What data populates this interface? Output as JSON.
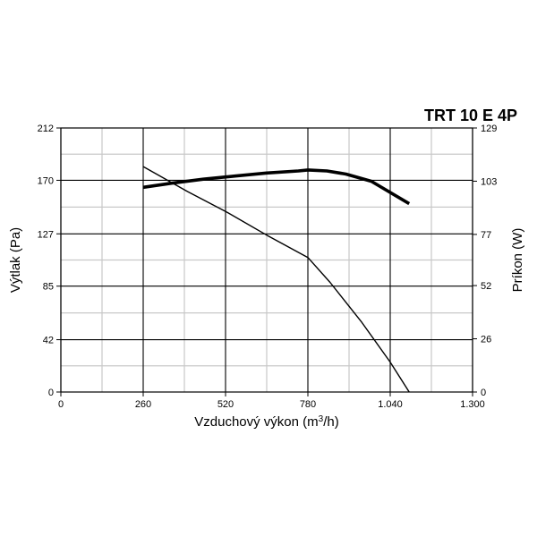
{
  "chart_data": {
    "type": "line",
    "title": "TRT 10 E 4P",
    "xlabel": "Vzduchový výkon (m",
    "xlabel_sup": "3",
    "xlabel_tail": "/h)",
    "ylabel": "Výtlak (Pa)",
    "y2label": "Príkon (W)",
    "xlim": [
      0,
      1300
    ],
    "ylim": [
      0,
      212
    ],
    "y2lim": [
      0,
      129
    ],
    "x_ticks": [
      0,
      260,
      520,
      780,
      1040,
      1300
    ],
    "x_tick_labels": [
      "0",
      "260",
      "520",
      "780",
      "1.040",
      "1.300"
    ],
    "y_ticks": [
      0,
      42,
      85,
      127,
      170,
      212
    ],
    "y_tick_labels": [
      "0",
      "42",
      "85",
      "127",
      "170",
      "212"
    ],
    "y2_ticks": [
      0,
      26,
      52,
      77,
      103,
      129
    ],
    "y2_tick_labels": [
      "0",
      "26",
      "52",
      "77",
      "103",
      "129"
    ],
    "grid": true,
    "series": [
      {
        "axis": "left",
        "style": "thin",
        "x": [
          260,
          400,
          520,
          650,
          780,
          850,
          950,
          1040,
          1100
        ],
        "y": [
          181,
          161,
          145,
          126,
          108,
          88,
          56,
          24,
          0
        ]
      },
      {
        "axis": "right",
        "style": "thick",
        "x": [
          260,
          350,
          450,
          550,
          650,
          750,
          780,
          840,
          900,
          980,
          1100
        ],
        "y": [
          100,
          102,
          104,
          105.5,
          107,
          108,
          108.5,
          108,
          106.5,
          103,
          92
        ]
      }
    ]
  }
}
